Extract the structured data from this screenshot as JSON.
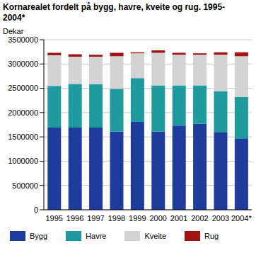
{
  "chart_data": {
    "type": "bar",
    "stacked": true,
    "title": "Kornarealet fordelt på bygg, havre, kveite og rug. 1995-2004*",
    "y_label": "Dekar",
    "categories": [
      "1995",
      "1996",
      "1997",
      "1998",
      "1999",
      "2000",
      "2001",
      "2002",
      "2003",
      "2004*"
    ],
    "series": [
      {
        "name": "Bygg",
        "color": "#1e3c9c",
        "values": [
          1690000,
          1690000,
          1690000,
          1610000,
          1810000,
          1610000,
          1730000,
          1770000,
          1600000,
          1470000
        ]
      },
      {
        "name": "Havre",
        "color": "#1f9a9e",
        "values": [
          860000,
          900000,
          890000,
          880000,
          900000,
          950000,
          830000,
          790000,
          840000,
          850000
        ]
      },
      {
        "name": "Kveite",
        "color": "#d3d3d3",
        "values": [
          630000,
          560000,
          570000,
          670000,
          510000,
          670000,
          630000,
          630000,
          750000,
          840000
        ]
      },
      {
        "name": "Rug",
        "color": "#a31212",
        "values": [
          50000,
          50000,
          40000,
          70000,
          20000,
          50000,
          40000,
          30000,
          50000,
          80000
        ]
      }
    ],
    "ylim": [
      0,
      3500000
    ],
    "yticks": [
      0,
      500000,
      1000000,
      1500000,
      2000000,
      2500000,
      3000000,
      3500000
    ],
    "grid": true
  }
}
